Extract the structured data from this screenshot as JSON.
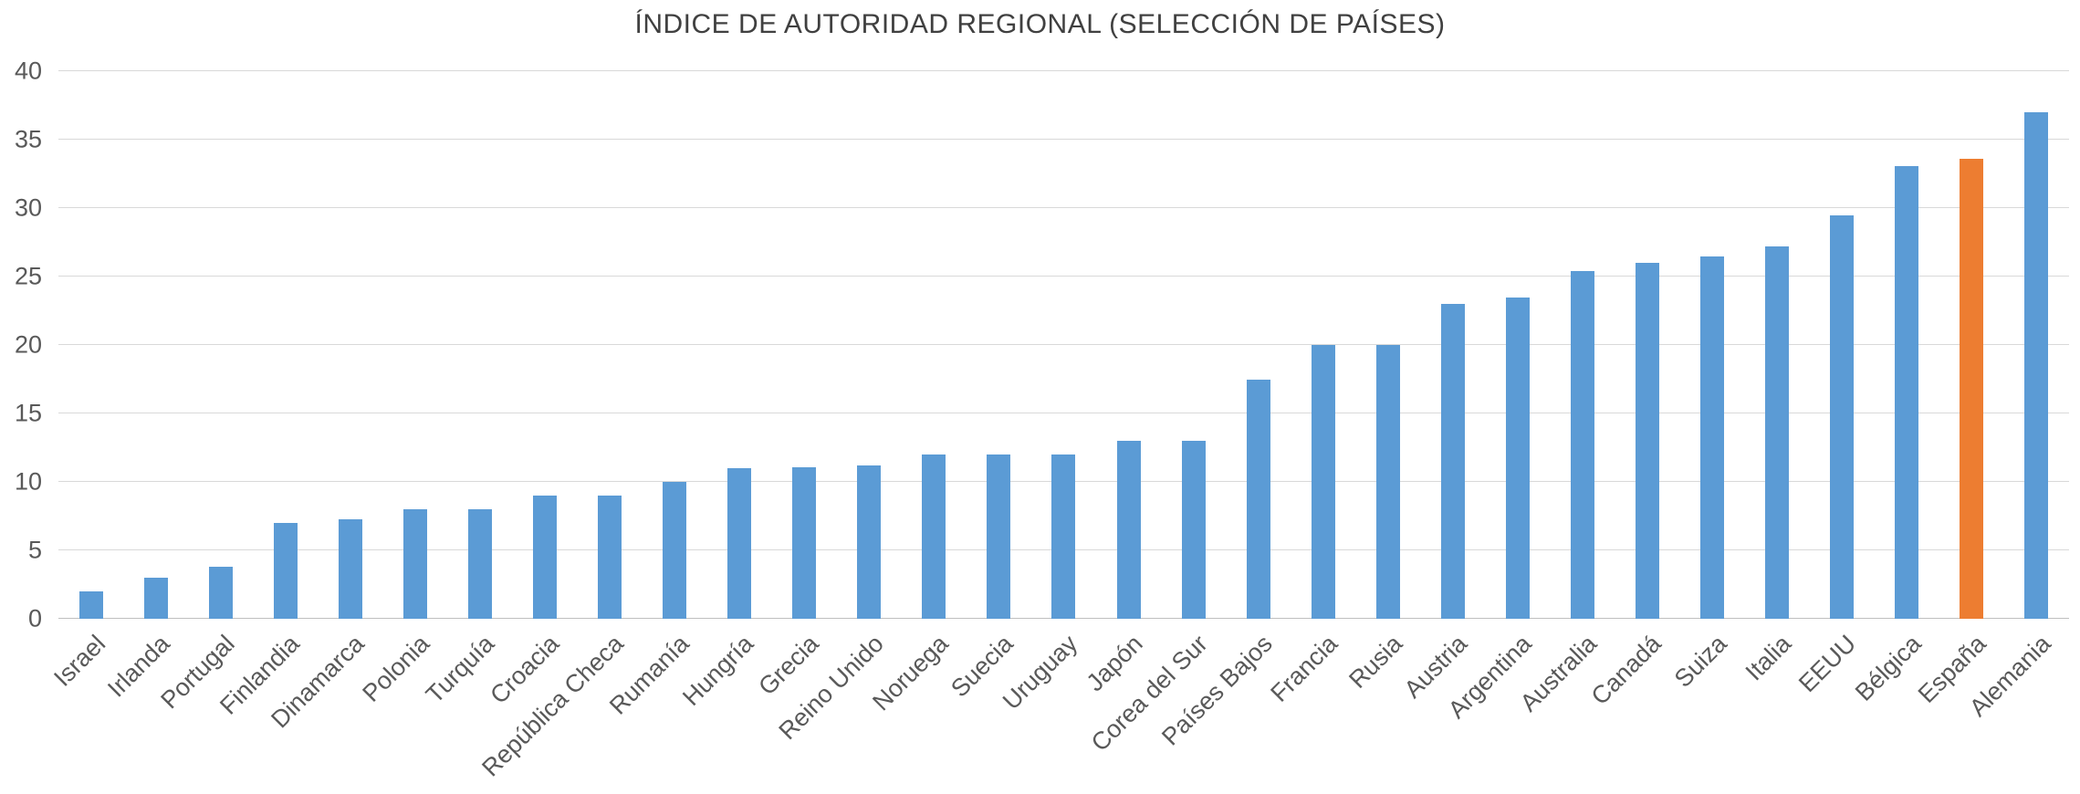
{
  "chart_data": {
    "type": "bar",
    "title": "ÍNDICE DE AUTORIDAD REGIONAL (SELECCIÓN DE PAÍSES)",
    "xlabel": "",
    "ylabel": "",
    "categories": [
      "Israel",
      "Irlanda",
      "Portugal",
      "Finlandia",
      "Dinamarca",
      "Polonia",
      "Turquía",
      "Croacia",
      "República Checa",
      "Rumanía",
      "Hungría",
      "Grecia",
      "Reino Unido",
      "Noruega",
      "Suecia",
      "Uruguay",
      "Japón",
      "Corea del Sur",
      "Países Bajos",
      "Francia",
      "Rusia",
      "Austria",
      "Argentina",
      "Australia",
      "Canadá",
      "Suiza",
      "Italia",
      "EEUU",
      "Bélgica",
      "España",
      "Alemania"
    ],
    "values": [
      2,
      3,
      3.8,
      7,
      7.3,
      8,
      8,
      9,
      9,
      10,
      11,
      11.1,
      11.2,
      12,
      12,
      12,
      13,
      13,
      17.5,
      20,
      20,
      23,
      23.5,
      25.4,
      26,
      26.5,
      27.2,
      29.5,
      33.1,
      33.6,
      37
    ],
    "highlight_category": "España",
    "ylim": [
      0,
      40
    ],
    "ytick_step": 5,
    "grid": true,
    "legend": false,
    "colors": {
      "bar": "#5b9bd5",
      "highlight": "#ed7d31",
      "gridline": "#d9d9d9",
      "title_text": "#404040",
      "tick_text": "#595959"
    }
  }
}
